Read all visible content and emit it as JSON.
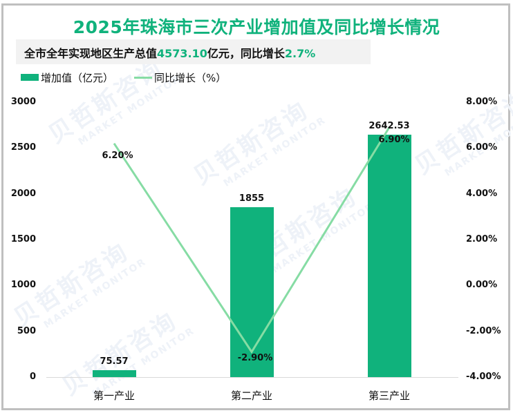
{
  "title": "2025年珠海市三次产业增加值及同比增长情况",
  "subtitle": {
    "prefix": "全市全年实现地区生产总值",
    "gdp_value": "4573.10",
    "middle": "亿元，同比增长",
    "growth_value": "2.7%"
  },
  "legend": {
    "bar_label": "增加值（亿元）",
    "line_label": "同比增长（%）"
  },
  "watermark": {
    "cn": "贝哲斯咨询",
    "en": "MARKET MONITOR"
  },
  "colors": {
    "bar": "#10b27c",
    "line": "#86dca4",
    "title": "#10b27c",
    "border": "#bfbfbf"
  },
  "axes": {
    "left_ticks": [
      "3000",
      "2500",
      "2000",
      "1500",
      "1000",
      "500",
      "0"
    ],
    "right_ticks": [
      "8.00%",
      "6.00%",
      "4.00%",
      "2.00%",
      "0.00%",
      "-2.00%",
      "-4.00%"
    ]
  },
  "categories": [
    "第一产业",
    "第二产业",
    "第三产业"
  ],
  "bar_labels": [
    "75.57",
    "1855",
    "2642.53"
  ],
  "line_labels": [
    "6.20%",
    "-2.90%",
    "6.90%"
  ],
  "chart_data": {
    "type": "bar",
    "title": "2025年珠海市三次产业增加值及同比增长情况",
    "subtitle": "全市全年实现地区生产总值4573.10亿元，同比增长2.7%",
    "categories": [
      "第一产业",
      "第二产业",
      "第三产业"
    ],
    "series": [
      {
        "name": "增加值（亿元）",
        "type": "bar",
        "axis": "left",
        "values": [
          75.57,
          1855,
          2642.53
        ]
      },
      {
        "name": "同比增长（%）",
        "type": "line",
        "axis": "right",
        "values": [
          6.2,
          -2.9,
          6.9
        ]
      }
    ],
    "xlabel": "",
    "ylabel": "",
    "ylim": [
      0,
      3000
    ],
    "y2lim": [
      -4,
      8
    ],
    "left_ticks": [
      0,
      500,
      1000,
      1500,
      2000,
      2500,
      3000
    ],
    "right_ticks": [
      "-4.00%",
      "-2.00%",
      "0.00%",
      "2.00%",
      "4.00%",
      "6.00%",
      "8.00%"
    ],
    "grid": false,
    "legend_position": "top-left"
  }
}
